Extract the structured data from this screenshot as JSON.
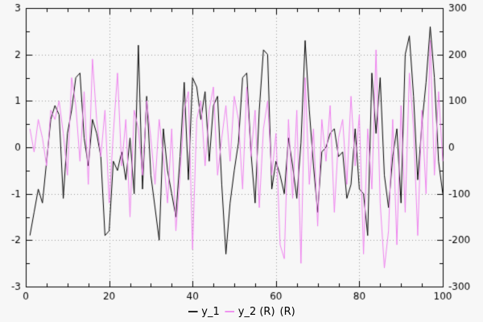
{
  "chart_data": {
    "type": "line",
    "title": "",
    "xlabel": "",
    "ylabel": "",
    "x_range": [
      0,
      100
    ],
    "left_ylim": [
      -3,
      3
    ],
    "right_ylim": [
      -300,
      300
    ],
    "x_ticks": [
      0,
      20,
      40,
      60,
      80,
      100
    ],
    "left_ticks": [
      3,
      2,
      1,
      0,
      -1,
      -2,
      -3
    ],
    "right_ticks": [
      300,
      200,
      100,
      0,
      -100,
      -200,
      -300
    ],
    "grid": true,
    "grid_style": "dotted",
    "legend_position": "bottom",
    "extra_label": "(R)",
    "colors": {
      "background": "#f7f7f7",
      "border": "#000000",
      "grid": "#999999"
    },
    "series": [
      {
        "name": "y_1",
        "color": "#000000",
        "axis": "left",
        "x_start": 1,
        "values": [
          -1.9,
          -1.4,
          -0.9,
          -1.2,
          -0.3,
          0.6,
          0.9,
          0.7,
          -1.1,
          0.3,
          0.8,
          1.5,
          1.6,
          0.2,
          -0.4,
          0.6,
          0.3,
          -0.2,
          -1.9,
          -1.8,
          -0.3,
          -0.5,
          -0.1,
          -0.7,
          0.2,
          -1.0,
          2.2,
          -0.9,
          1.1,
          -0.6,
          -1.3,
          -2.0,
          0.4,
          -0.5,
          -1.0,
          -1.5,
          -0.2,
          1.4,
          -0.7,
          1.5,
          1.3,
          0.6,
          1.2,
          -0.3,
          0.9,
          1.1,
          -0.8,
          -2.3,
          -1.2,
          -0.5,
          0.1,
          1.5,
          1.6,
          -0.1,
          -1.2,
          0.8,
          2.1,
          2.0,
          -0.9,
          -0.3,
          -0.6,
          -1.0,
          0.2,
          -0.4,
          -1.1,
          0.1,
          2.3,
          0.8,
          -0.4,
          -1.4,
          -0.1,
          0.0,
          0.3,
          0.4,
          -0.2,
          -0.1,
          -1.1,
          -0.8,
          0.4,
          -0.9,
          -1.0,
          -1.9,
          1.6,
          0.3,
          1.5,
          -0.6,
          -1.3,
          -0.2,
          0.4,
          -1.2,
          2.0,
          2.4,
          1.1,
          -0.7,
          0.5,
          1.4,
          2.6,
          1.5,
          -0.3,
          -1.0
        ]
      },
      {
        "name": "y_2 (R)",
        "color": "#ee82ee",
        "axis": "right",
        "x_start": 1,
        "values": [
          40,
          -10,
          60,
          20,
          -40,
          80,
          60,
          100,
          30,
          -60,
          150,
          90,
          -30,
          120,
          -80,
          190,
          60,
          -20,
          80,
          -120,
          30,
          160,
          -40,
          60,
          -150,
          80,
          40,
          -60,
          100,
          20,
          -80,
          60,
          -20,
          -120,
          40,
          -180,
          -60,
          80,
          120,
          -220,
          60,
          100,
          -40,
          80,
          130,
          -60,
          20,
          90,
          -30,
          110,
          60,
          -90,
          130,
          -20,
          80,
          -130,
          40,
          100,
          -60,
          30,
          -210,
          -240,
          60,
          -110,
          80,
          -250,
          150,
          -80,
          40,
          -170,
          60,
          -30,
          90,
          -140,
          20,
          60,
          -80,
          110,
          -40,
          70,
          -230,
          40,
          -90,
          210,
          -120,
          -260,
          -180,
          60,
          -210,
          90,
          -140,
          160,
          40,
          -190,
          80,
          -100,
          230,
          -60,
          120,
          -30
        ]
      }
    ]
  }
}
